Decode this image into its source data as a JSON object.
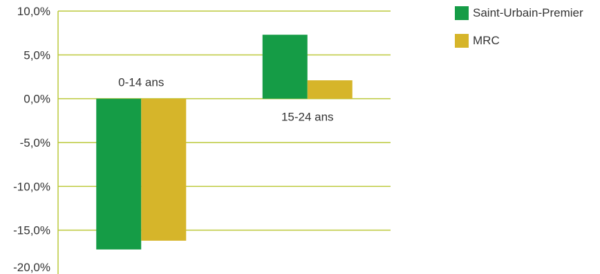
{
  "chart_data": {
    "type": "bar",
    "categories": [
      "0-14 ans",
      "15-24 ans"
    ],
    "series": [
      {
        "name": "Saint-Urbain-Premier",
        "values": [
          -17.2,
          7.3
        ],
        "color": "#159c46"
      },
      {
        "name": "MRC",
        "values": [
          -16.2,
          2.1
        ],
        "color": "#d6b52a"
      }
    ],
    "yticks": [
      "10,0%",
      "5,0%",
      "0,0%",
      "-5,0%",
      "-10,0%",
      "-15,0%",
      "-20,0%"
    ],
    "ylim": [
      -20,
      10
    ],
    "grid": true,
    "gridColor": "#bcc93a",
    "legend": "right"
  }
}
